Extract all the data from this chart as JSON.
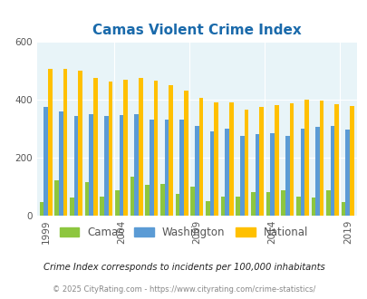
{
  "title": "Camas Violent Crime Index",
  "years": [
    1999,
    2000,
    2001,
    2002,
    2003,
    2004,
    2005,
    2006,
    2007,
    2008,
    2009,
    2010,
    2011,
    2012,
    2013,
    2014,
    2015,
    2016,
    2017,
    2018,
    2019,
    2020
  ],
  "camas": [
    45,
    120,
    60,
    115,
    65,
    85,
    135,
    105,
    110,
    75,
    100,
    50,
    65,
    65,
    80,
    80,
    85,
    65,
    60,
    85,
    45,
    0
  ],
  "washington": [
    375,
    360,
    345,
    350,
    345,
    348,
    350,
    330,
    330,
    330,
    310,
    290,
    300,
    275,
    280,
    285,
    275,
    300,
    305,
    310,
    295,
    0
  ],
  "national": [
    507,
    507,
    500,
    475,
    462,
    470,
    475,
    465,
    450,
    430,
    405,
    390,
    390,
    367,
    375,
    380,
    388,
    400,
    397,
    385,
    379,
    0
  ],
  "bar_width": 0.28,
  "ylim": [
    0,
    600
  ],
  "yticks": [
    0,
    200,
    400,
    600
  ],
  "color_camas": "#8dc63f",
  "color_washington": "#5b9bd5",
  "color_national": "#ffc000",
  "bg_color": "#e8f4f8",
  "title_color": "#1a6aab",
  "subtitle": "Crime Index corresponds to incidents per 100,000 inhabitants",
  "footer": "© 2025 CityRating.com - https://www.cityrating.com/crime-statistics/",
  "xtick_years": [
    1999,
    2004,
    2009,
    2014,
    2019
  ],
  "legend_labels": [
    "Camas",
    "Washington",
    "National"
  ],
  "tick_color": "#555555",
  "footer_color": "#888888",
  "subtitle_color": "#222222"
}
